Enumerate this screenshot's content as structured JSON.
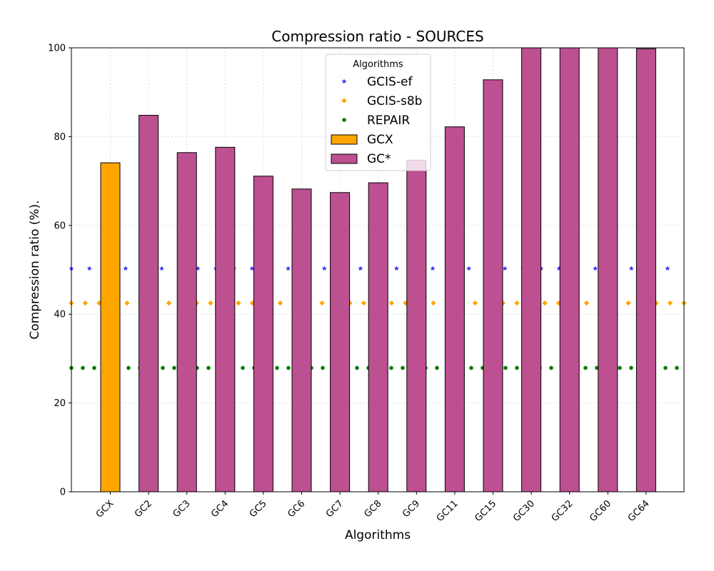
{
  "chart_data": {
    "type": "bar",
    "title": "Compression ratio -  SOURCES",
    "xlabel": "Algorithms",
    "ylabel": "Compression ratio (%).",
    "ylim": [
      0,
      100
    ],
    "yticks": [
      0,
      20,
      40,
      60,
      80,
      100
    ],
    "grid": true,
    "categories": [
      "GCX",
      "GC2",
      "GC3",
      "GC4",
      "GC5",
      "GC6",
      "GC7",
      "GC8",
      "GC9",
      "GC11",
      "GC15",
      "GC30",
      "GC32",
      "GC60",
      "GC64"
    ],
    "series": [
      {
        "name": "GCX",
        "kind": "bar",
        "color": "#ffa500",
        "values": [
          74.1,
          null,
          null,
          null,
          null,
          null,
          null,
          null,
          null,
          null,
          null,
          null,
          null,
          null,
          null
        ]
      },
      {
        "name": "GC*",
        "kind": "bar",
        "color": "#bd5090",
        "values": [
          null,
          84.8,
          76.4,
          77.6,
          71.1,
          68.2,
          67.4,
          69.6,
          74.7,
          82.2,
          92.8,
          100,
          100,
          100,
          99.8
        ]
      },
      {
        "name": "GCIS-ef",
        "kind": "line-marker",
        "marker": "star",
        "color": "#3333ff",
        "value": 50.3
      },
      {
        "name": "GCIS-s8b",
        "kind": "line-marker",
        "marker": "diamond",
        "color": "#ffa500",
        "value": 42.5
      },
      {
        "name": "REPAIR",
        "kind": "line-marker",
        "marker": "circle",
        "color": "#008000",
        "value": 27.9
      }
    ],
    "legend": {
      "title": "Algorithms",
      "placement": "top-center",
      "order": [
        "GCIS-ef",
        "GCIS-s8b",
        "REPAIR",
        "GCX",
        "GC*"
      ]
    }
  }
}
